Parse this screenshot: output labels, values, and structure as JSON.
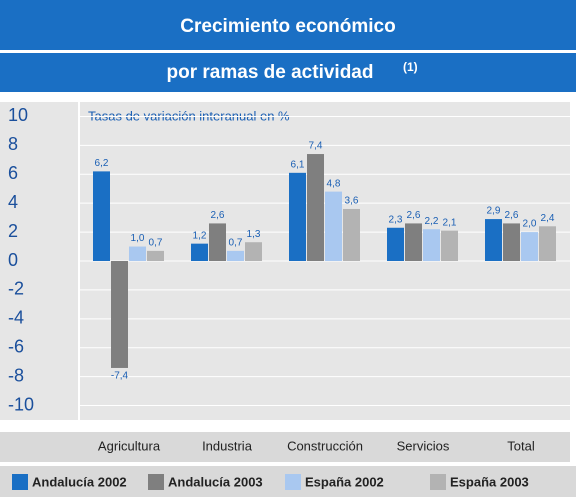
{
  "chart_data": {
    "type": "bar",
    "title": [
      "Crecimiento económico",
      "por ramas de actividad"
    ],
    "title_note": "(1)",
    "subtitle": "Tasas de variación interanual en %",
    "categories": [
      "Agricultura",
      "Industria",
      "Construcción",
      "Servicios",
      "Total"
    ],
    "series": [
      {
        "name": "Andalucía 2002",
        "color": "#1a6fc4",
        "values": [
          6.2,
          1.2,
          6.1,
          2.3,
          2.9
        ],
        "value_labels": [
          "6,2",
          "1,2",
          "6,1",
          "2,3",
          "2,9"
        ]
      },
      {
        "name": "Andalucía 2003",
        "color": "#7f7f7f",
        "values": [
          -7.4,
          2.6,
          7.4,
          2.6,
          2.6
        ],
        "value_labels": [
          "-7,4",
          "2,6",
          "7,4",
          "2,6",
          "2,6"
        ]
      },
      {
        "name": "España 2002",
        "color": "#a9c8f0",
        "values": [
          1.0,
          0.7,
          4.8,
          2.2,
          2.0
        ],
        "value_labels": [
          "1,0",
          "0,7",
          "4,8",
          "2,2",
          "2,0"
        ]
      },
      {
        "name": "España 2003",
        "color": "#b3b3b3",
        "values": [
          0.7,
          1.3,
          3.6,
          2.1,
          2.4
        ],
        "value_labels": [
          "0,7",
          "1,3",
          "3,6",
          "2,1",
          "2,4"
        ]
      }
    ],
    "ylim": [
      -11,
      11
    ],
    "yticks": [
      10,
      8,
      6,
      4,
      2,
      0,
      -2,
      -4,
      -6,
      -8,
      -10
    ],
    "grid": true
  }
}
